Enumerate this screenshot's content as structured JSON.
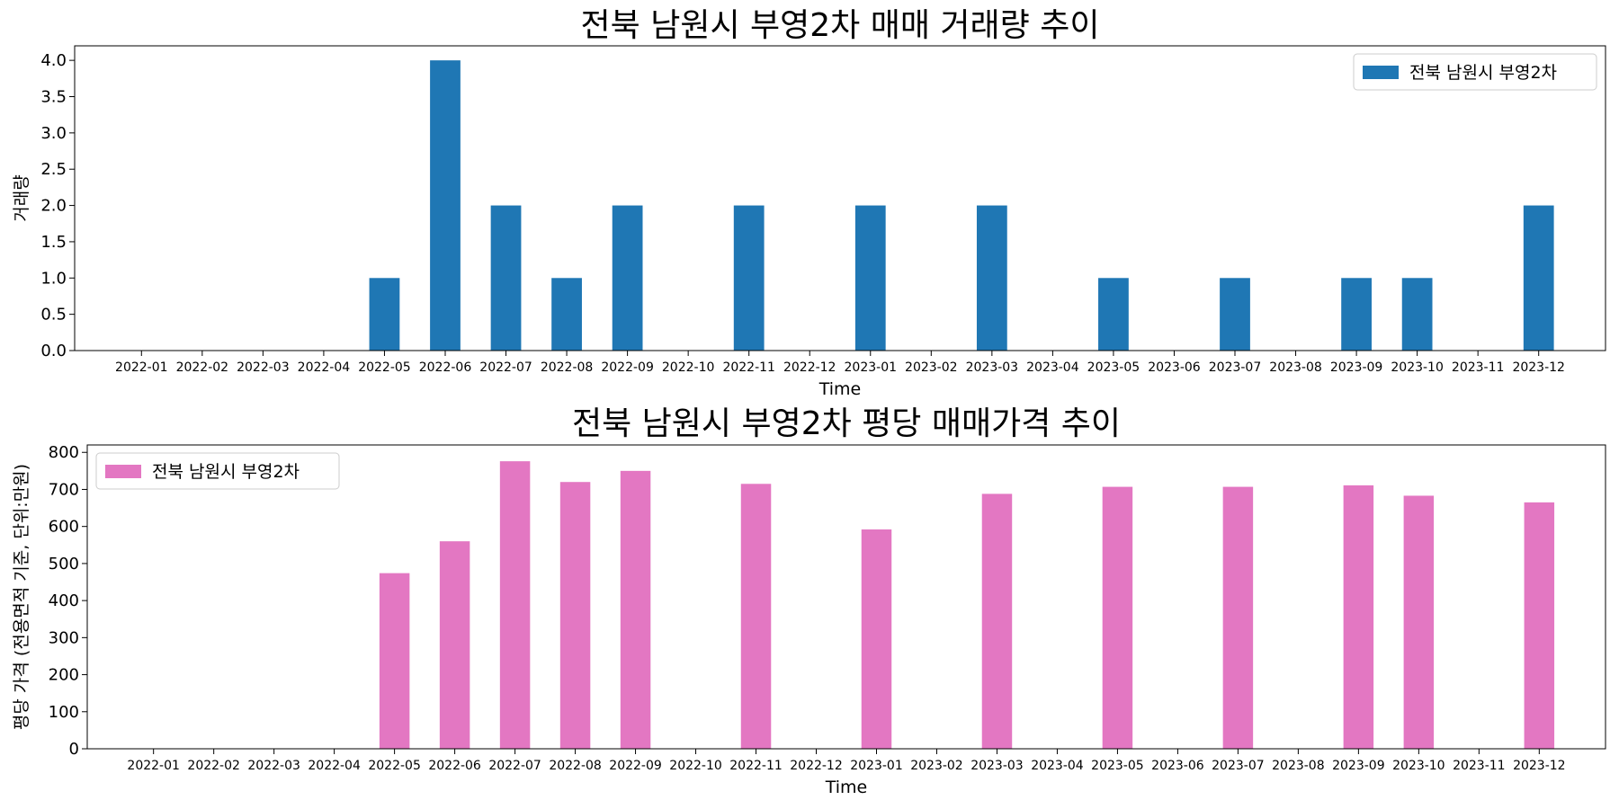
{
  "chart_data": [
    {
      "type": "bar",
      "title": "전북 남원시 부영2차 매매 거래량 추이",
      "xlabel": "Time",
      "ylabel": "거래량",
      "ylim": [
        0,
        4.2
      ],
      "yticks": [
        "0.0",
        "0.5",
        "1.0",
        "1.5",
        "2.0",
        "2.5",
        "3.0",
        "3.5",
        "4.0"
      ],
      "grid": false,
      "legend_position": "top-right",
      "categories": [
        "2022-01",
        "2022-02",
        "2022-03",
        "2022-04",
        "2022-05",
        "2022-06",
        "2022-07",
        "2022-08",
        "2022-09",
        "2022-10",
        "2022-11",
        "2022-12",
        "2023-01",
        "2023-02",
        "2023-03",
        "2023-04",
        "2023-05",
        "2023-06",
        "2023-07",
        "2023-08",
        "2023-09",
        "2023-10",
        "2023-11",
        "2023-12"
      ],
      "series": [
        {
          "name": "전북 남원시 부영2차",
          "color": "#1f77b4",
          "values": [
            0,
            0,
            0,
            0,
            1,
            4,
            2,
            1,
            2,
            0,
            2,
            0,
            2,
            0,
            2,
            0,
            1,
            0,
            1,
            0,
            1,
            1,
            0,
            2
          ]
        }
      ]
    },
    {
      "type": "bar",
      "title": "전북 남원시 부영2차 평당 매매가격 추이",
      "xlabel": "Time",
      "ylabel": "평당 가격 (전용면적 기준, 단위:만원)",
      "ylim": [
        0,
        820
      ],
      "yticks": [
        "0",
        "100",
        "200",
        "300",
        "400",
        "500",
        "600",
        "700",
        "800"
      ],
      "grid": false,
      "legend_position": "top-left",
      "categories": [
        "2022-01",
        "2022-02",
        "2022-03",
        "2022-04",
        "2022-05",
        "2022-06",
        "2022-07",
        "2022-08",
        "2022-09",
        "2022-10",
        "2022-11",
        "2022-12",
        "2023-01",
        "2023-02",
        "2023-03",
        "2023-04",
        "2023-05",
        "2023-06",
        "2023-07",
        "2023-08",
        "2023-09",
        "2023-10",
        "2023-11",
        "2023-12"
      ],
      "series": [
        {
          "name": "전북 남원시 부영2차",
          "color": "#e377c2",
          "values": [
            0,
            0,
            0,
            0,
            474,
            560,
            776,
            720,
            750,
            0,
            715,
            0,
            592,
            0,
            688,
            0,
            707,
            0,
            707,
            0,
            711,
            683,
            0,
            665
          ]
        }
      ]
    }
  ]
}
